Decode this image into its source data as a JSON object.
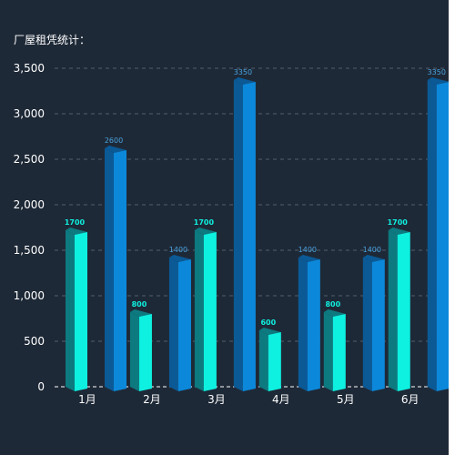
{
  "panel": {
    "title": "厂屋租凭统计："
  },
  "chart_data": {
    "type": "bar",
    "title": "厂屋租凭统计：",
    "categories": [
      "1月",
      "2月",
      "3月",
      "4月",
      "5月",
      "6月"
    ],
    "series": [
      {
        "values": [
          1700,
          800,
          1700,
          600,
          800,
          1700
        ],
        "color": "#0ef0e0",
        "side_color": "#0d7a80"
      },
      {
        "values": [
          2600,
          1400,
          3350,
          1400,
          1400,
          3350
        ],
        "color": "#0c88da",
        "side_color": "#0b5a96"
      }
    ],
    "ylim": [
      0,
      3500
    ],
    "yticks": [
      0,
      500,
      1000,
      1500,
      2000,
      2500,
      3000,
      3500
    ],
    "ytick_labels": [
      "0",
      "500",
      "1,000",
      "1,500",
      "2,000",
      "2,500",
      "3,000",
      "3,500"
    ],
    "grid": true,
    "legend": "none",
    "colors": {
      "background": "#1e2937",
      "grid": "#51606f",
      "text": "#ffffff"
    }
  }
}
